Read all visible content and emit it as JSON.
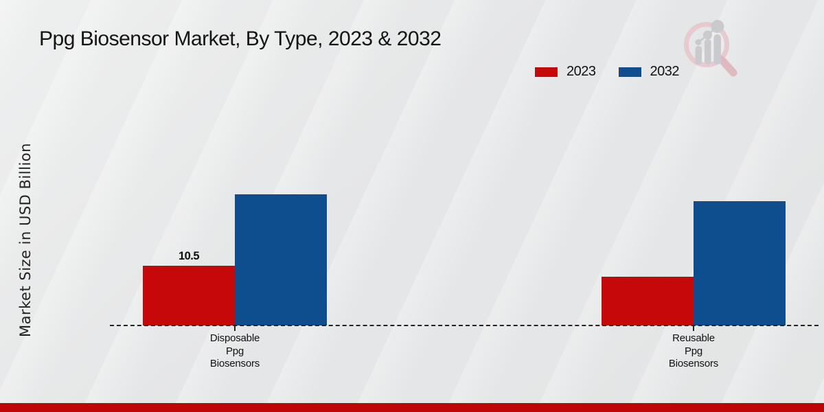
{
  "chart_data": {
    "type": "bar",
    "title": "Ppg Biosensor Market, By Type, 2023 & 2032",
    "ylabel": "Market Size in USD Billion",
    "xlabel": "",
    "categories": [
      "Disposable Ppg Biosensors",
      "Reusable Ppg Biosensors"
    ],
    "categories_display": [
      "Disposable\nPpg\nBiosensors",
      "Reusable\nPpg\nBiosensors"
    ],
    "series": [
      {
        "name": "2023",
        "color": "#c50808",
        "values": [
          10.5,
          8.6
        ],
        "labels": [
          "10.5",
          ""
        ]
      },
      {
        "name": "2032",
        "color": "#0e4d8e",
        "values": [
          23,
          21.8
        ],
        "labels": [
          "",
          ""
        ]
      }
    ],
    "ylim": [
      0,
      25
    ],
    "grid": false,
    "legend_position": "top-right",
    "baseline_style": "dashed"
  },
  "branding": {
    "logo_name": "magnifier-bar-chart-logo",
    "ring_color": "#e7cad0",
    "handle_color": "#debac0",
    "glyph_color": "#c9c9ce"
  },
  "footer": {
    "accent_color": "#c00505"
  }
}
